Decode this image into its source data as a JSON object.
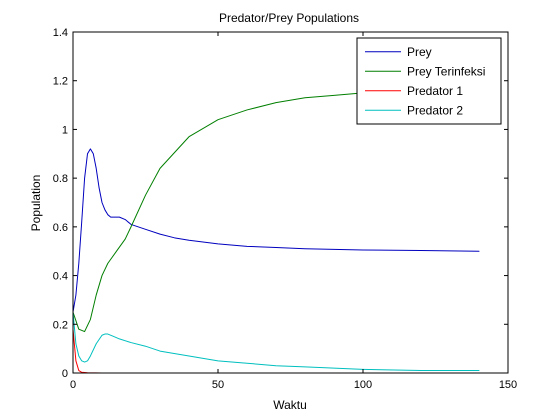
{
  "chart_data": {
    "type": "line",
    "title": "Predator/Prey Populations",
    "xlabel": "Waktu",
    "ylabel": "Population",
    "xlim": [
      0,
      150
    ],
    "ylim": [
      0,
      1.4
    ],
    "xticks": [
      0,
      50,
      100,
      150
    ],
    "yticks": [
      0,
      0.2,
      0.4,
      0.6,
      0.8,
      1,
      1.2,
      1.4
    ],
    "xtick_labels": [
      "0",
      "50",
      "100",
      "150"
    ],
    "ytick_labels": [
      "0",
      "0.2",
      "0.4",
      "0.6",
      "0.8",
      "1",
      "1.2",
      "1.4"
    ],
    "grid": false,
    "legend_position": "top-right",
    "series": [
      {
        "name": "Prey",
        "color": "#0000bf",
        "x": [
          0,
          1,
          2,
          3,
          4,
          5,
          6,
          7,
          8,
          9,
          10,
          11,
          12,
          13,
          14,
          16,
          18,
          20,
          25,
          30,
          35,
          40,
          50,
          60,
          70,
          80,
          100,
          120,
          140
        ],
        "y": [
          0.25,
          0.32,
          0.45,
          0.62,
          0.8,
          0.9,
          0.92,
          0.9,
          0.84,
          0.76,
          0.7,
          0.67,
          0.65,
          0.64,
          0.64,
          0.64,
          0.63,
          0.61,
          0.59,
          0.57,
          0.555,
          0.545,
          0.53,
          0.52,
          0.515,
          0.51,
          0.505,
          0.503,
          0.5
        ]
      },
      {
        "name": "Prey Terinfeksi",
        "color": "#007f00",
        "x": [
          0,
          2,
          4,
          6,
          8,
          10,
          12,
          15,
          18,
          20,
          25,
          30,
          40,
          50,
          60,
          70,
          80,
          90,
          100,
          110,
          120
        ],
        "y": [
          0.25,
          0.18,
          0.17,
          0.22,
          0.32,
          0.4,
          0.45,
          0.5,
          0.55,
          0.6,
          0.73,
          0.84,
          0.97,
          1.04,
          1.08,
          1.11,
          1.13,
          1.14,
          1.15,
          1.155,
          1.16
        ]
      },
      {
        "name": "Predator 1",
        "color": "#ff0000",
        "x": [
          0,
          1,
          2,
          3,
          5,
          10,
          20,
          30,
          40,
          47
        ],
        "y": [
          0.18,
          0.05,
          0.01,
          0.003,
          0.001,
          0.0,
          0.0,
          0.0,
          0.0,
          0.0
        ]
      },
      {
        "name": "Predator 2",
        "color": "#00bfbf",
        "x": [
          0,
          1,
          2,
          3,
          4,
          5,
          6,
          8,
          10,
          11,
          12,
          14,
          16,
          20,
          25,
          30,
          40,
          50,
          60,
          70,
          80,
          100,
          120,
          140
        ],
        "y": [
          0.25,
          0.12,
          0.07,
          0.05,
          0.045,
          0.05,
          0.07,
          0.12,
          0.155,
          0.16,
          0.16,
          0.15,
          0.14,
          0.125,
          0.11,
          0.09,
          0.07,
          0.05,
          0.04,
          0.03,
          0.025,
          0.015,
          0.01,
          0.01
        ]
      }
    ]
  }
}
